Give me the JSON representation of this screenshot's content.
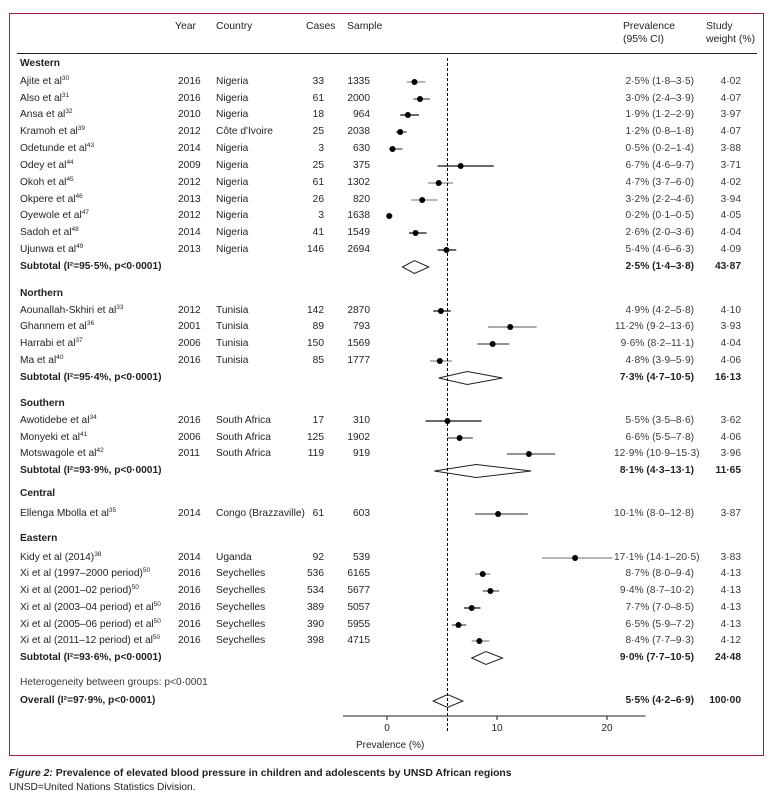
{
  "columns": {
    "study": "",
    "year": "Year",
    "country": "Country",
    "cases": "Cases",
    "sample": "Sample",
    "prevalence_line1": "Prevalence",
    "prevalence_line2": "(95% CI)",
    "weight_line1": "Study",
    "weight_line2": "weight (%)"
  },
  "groups": [
    {
      "name": "Western",
      "studies": [
        {
          "author": "Ajite et al",
          "ref": "30",
          "year": "2016",
          "country": "Nigeria",
          "cases": "33",
          "sample": "1335",
          "est": 2.5,
          "lo": 1.8,
          "hi": 3.5,
          "ci_text": "2·5% (1·8–3·5)",
          "weight": "4·02",
          "ci_color": "#8c8c8c"
        },
        {
          "author": "Also et al",
          "ref": "31",
          "year": "2016",
          "country": "Nigeria",
          "cases": "61",
          "sample": "2000",
          "est": 3.0,
          "lo": 2.4,
          "hi": 3.9,
          "ci_text": "3·0% (2·4–3·9)",
          "weight": "4·07",
          "ci_color": "#555555"
        },
        {
          "author": "Ansa et al",
          "ref": "32",
          "year": "2010",
          "country": "Nigeria",
          "cases": "18",
          "sample": "964",
          "est": 1.9,
          "lo": 1.2,
          "hi": 2.9,
          "ci_text": "1·9% (1·2–2·9)",
          "weight": "3·97",
          "ci_color": "#111111"
        },
        {
          "author": "Kramoh et al",
          "ref": "39",
          "year": "2012",
          "country": "Côte d'Ivoire",
          "cases": "25",
          "sample": "2038",
          "est": 1.2,
          "lo": 0.8,
          "hi": 1.8,
          "ci_text": "1·2% (0·8–1·8)",
          "weight": "4·07",
          "ci_color": "#555555"
        },
        {
          "author": "Odetunde et al",
          "ref": "43",
          "year": "2014",
          "country": "Nigeria",
          "cases": "3",
          "sample": "630",
          "est": 0.5,
          "lo": 0.2,
          "hi": 1.4,
          "ci_text": "0·5% (0·2–1·4)",
          "weight": "3·88",
          "ci_color": "#555555"
        },
        {
          "author": "Odey et al",
          "ref": "44",
          "year": "2009",
          "country": "Nigeria",
          "cases": "25",
          "sample": "375",
          "est": 6.7,
          "lo": 4.6,
          "hi": 9.7,
          "ci_text": "6·7% (4·6–9·7)",
          "weight": "3·71",
          "ci_color": "#111111"
        },
        {
          "author": "Okoh et al",
          "ref": "45",
          "year": "2012",
          "country": "Nigeria",
          "cases": "61",
          "sample": "1302",
          "est": 4.7,
          "lo": 3.7,
          "hi": 6.0,
          "ci_text": "4·7% (3·7–6·0)",
          "weight": "4·02",
          "ci_color": "#8c8c8c"
        },
        {
          "author": "Okpere et al",
          "ref": "46",
          "year": "2013",
          "country": "Nigeria",
          "cases": "26",
          "sample": "820",
          "est": 3.2,
          "lo": 2.2,
          "hi": 4.6,
          "ci_text": "3·2% (2·2–4·6)",
          "weight": "3·94",
          "ci_color": "#8c8c8c"
        },
        {
          "author": "Oyewole et al",
          "ref": "47",
          "year": "2012",
          "country": "Nigeria",
          "cases": "3",
          "sample": "1638",
          "est": 0.2,
          "lo": 0.1,
          "hi": 0.5,
          "ci_text": "0·2% (0·1–0·5)",
          "weight": "4·05",
          "ci_color": "#111111"
        },
        {
          "author": "Sadoh et al",
          "ref": "48",
          "year": "2014",
          "country": "Nigeria",
          "cases": "41",
          "sample": "1549",
          "est": 2.6,
          "lo": 2.0,
          "hi": 3.6,
          "ci_text": "2·6% (2·0–3·6)",
          "weight": "4·04",
          "ci_color": "#111111"
        },
        {
          "author": "Ujunwa et al",
          "ref": "49",
          "year": "2013",
          "country": "Nigeria",
          "cases": "146",
          "sample": "2694",
          "est": 5.4,
          "lo": 4.6,
          "hi": 6.3,
          "ci_text": "5·4% (4·6–6·3)",
          "weight": "4·09",
          "ci_color": "#111111"
        }
      ],
      "subtotal": {
        "label": "Subtotal (I²=95·5%, p<0·0001)",
        "est": 2.5,
        "lo": 1.4,
        "hi": 3.8,
        "ci_text": "2·5% (1·4–3·8)",
        "weight": "43·87"
      }
    },
    {
      "name": "Northern",
      "studies": [
        {
          "author": "Aounallah-Skhiri et al",
          "ref": "33",
          "year": "2012",
          "country": "Tunisia",
          "cases": "142",
          "sample": "2870",
          "est": 4.9,
          "lo": 4.2,
          "hi": 5.8,
          "ci_text": "4·9% (4·2–5·8)",
          "weight": "4·10",
          "ci_color": "#111111"
        },
        {
          "author": "Ghannem et al",
          "ref": "36",
          "year": "2001",
          "country": "Tunisia",
          "cases": "89",
          "sample": "793",
          "est": 11.2,
          "lo": 9.2,
          "hi": 13.6,
          "ci_text": "11·2% (9·2–13·6)",
          "weight": "3·93",
          "ci_color": "#777777"
        },
        {
          "author": "Harrabi et al",
          "ref": "37",
          "year": "2006",
          "country": "Tunisia",
          "cases": "150",
          "sample": "1569",
          "est": 9.6,
          "lo": 8.2,
          "hi": 11.1,
          "ci_text": "9·6% (8·2–11·1)",
          "weight": "4·04",
          "ci_color": "#555555"
        },
        {
          "author": "Ma et al",
          "ref": "40",
          "year": "2016",
          "country": "Tunisia",
          "cases": "85",
          "sample": "1777",
          "est": 4.8,
          "lo": 3.9,
          "hi": 5.9,
          "ci_text": "4·8% (3·9–5·9)",
          "weight": "4·06",
          "ci_color": "#8c8c8c"
        }
      ],
      "subtotal": {
        "label": "Subtotal (I²=95·4%, p<0·0001)",
        "est": 7.3,
        "lo": 4.7,
        "hi": 10.5,
        "ci_text": "7·3% (4·7–10·5)",
        "weight": "16·13"
      }
    },
    {
      "name": "Southern",
      "studies": [
        {
          "author": "Awotidebe et al",
          "ref": "34",
          "year": "2016",
          "country": "South Africa",
          "cases": "17",
          "sample": "310",
          "est": 5.5,
          "lo": 3.5,
          "hi": 8.6,
          "ci_text": "5·5% (3·5–8·6)",
          "weight": "3·62",
          "ci_color": "#111111"
        },
        {
          "author": "Monyeki et al",
          "ref": "41",
          "year": "2006",
          "country": "South Africa",
          "cases": "125",
          "sample": "1902",
          "est": 6.6,
          "lo": 5.5,
          "hi": 7.8,
          "ci_text": "6·6% (5·5–7·8)",
          "weight": "4·06",
          "ci_color": "#555555"
        },
        {
          "author": "Motswagole et al",
          "ref": "42",
          "year": "2011",
          "country": "South Africa",
          "cases": "119",
          "sample": "919",
          "est": 12.9,
          "lo": 10.9,
          "hi": 15.3,
          "ci_text": "12·9% (10·9–15·3)",
          "weight": "3·96",
          "ci_color": "#555555"
        }
      ],
      "subtotal": {
        "label": "Subtotal (I²=93·9%, p<0·0001)",
        "est": 8.1,
        "lo": 4.3,
        "hi": 13.1,
        "ci_text": "8·1% (4·3–13·1)",
        "weight": "11·65"
      }
    },
    {
      "name": "Central",
      "studies": [
        {
          "author": "Ellenga Mbolla et al",
          "ref": "35",
          "year": "2014",
          "country": "Congo (Brazzaville)",
          "cases": "61",
          "sample": "603",
          "est": 10.1,
          "lo": 8.0,
          "hi": 12.8,
          "ci_text": "10·1% (8·0–12·8)",
          "weight": "3·87",
          "ci_color": "#555555"
        }
      ],
      "subtotal": null
    },
    {
      "name": "Eastern",
      "studies": [
        {
          "author": "Kidy et al (2014)",
          "ref": "38",
          "year": "2014",
          "country": "Uganda",
          "cases": "92",
          "sample": "539",
          "est": 17.1,
          "lo": 14.1,
          "hi": 20.5,
          "ci_text": "17·1% (14·1–20·5)",
          "weight": "3·83",
          "ci_color": "#8c8c8c"
        },
        {
          "author": "Xi et al (1997–2000 period)",
          "ref": "50",
          "year": "2016",
          "country": "Seychelles",
          "cases": "536",
          "sample": "6165",
          "est": 8.7,
          "lo": 8.0,
          "hi": 9.4,
          "ci_text": "8·7% (8·0–9·4)",
          "weight": "4·13",
          "ci_color": "#8c8c8c"
        },
        {
          "author": "Xi et al (2001–02 period)",
          "ref": "50",
          "year": "2016",
          "country": "Seychelles",
          "cases": "534",
          "sample": "5677",
          "est": 9.4,
          "lo": 8.7,
          "hi": 10.2,
          "ci_text": "9·4% (8·7–10·2)",
          "weight": "4·13",
          "ci_color": "#555555"
        },
        {
          "author": "Xi et al (2003–04 period) et al",
          "ref": "50",
          "year": "2016",
          "country": "Seychelles",
          "cases": "389",
          "sample": "5057",
          "est": 7.7,
          "lo": 7.0,
          "hi": 8.5,
          "ci_text": "7·7% (7·0–8·5)",
          "weight": "4·13",
          "ci_color": "#111111"
        },
        {
          "author": "Xi et al (2005–06 period) et al",
          "ref": "50",
          "year": "2016",
          "country": "Seychelles",
          "cases": "390",
          "sample": "5955",
          "est": 6.5,
          "lo": 5.9,
          "hi": 7.2,
          "ci_text": "6·5% (5·9–7·2)",
          "weight": "4·13",
          "ci_color": "#555555"
        },
        {
          "author": "Xi et al (2011–12 period) et al",
          "ref": "50",
          "year": "2016",
          "country": "Seychelles",
          "cases": "398",
          "sample": "4715",
          "est": 8.4,
          "lo": 7.7,
          "hi": 9.3,
          "ci_text": "8·4% (7·7–9·3)",
          "weight": "4·12",
          "ci_color": "#8c8c8c"
        }
      ],
      "subtotal": {
        "label": "Subtotal (I²=93·6%, p<0·0001)",
        "est": 9.0,
        "lo": 7.7,
        "hi": 10.5,
        "ci_text": "9·0% (7·7–10·5)",
        "weight": "24·48"
      }
    }
  ],
  "heterogeneity": "Heterogeneity between groups: p<0·0001",
  "overall": {
    "label": "Overall (I²=97·9%, p<0·0001)",
    "est": 5.5,
    "lo": 4.2,
    "hi": 6.9,
    "ci_text": "5·5% (4·2–6·9)",
    "weight": "100·00"
  },
  "caption": {
    "figure_label": "Figure 2:",
    "title": " Prevalence of elevated blood pressure in children and adolescents by UNSD African regions",
    "note": "UNSD=United Nations Statistics Division."
  },
  "colors": {
    "frame": "#9b1c45",
    "ink": "#231f20"
  },
  "chart_data": {
    "type": "forest",
    "title": "Prevalence of elevated blood pressure in children and adolescents by UNSD African regions",
    "xlabel": "Prevalence (%)",
    "xlim": [
      -4,
      23.5
    ],
    "xticks": [
      0,
      10,
      20
    ],
    "xtick_labels": [
      "0",
      "10",
      "20"
    ],
    "reference_line": 5.5,
    "reference_style": "dashed",
    "grid": false
  }
}
